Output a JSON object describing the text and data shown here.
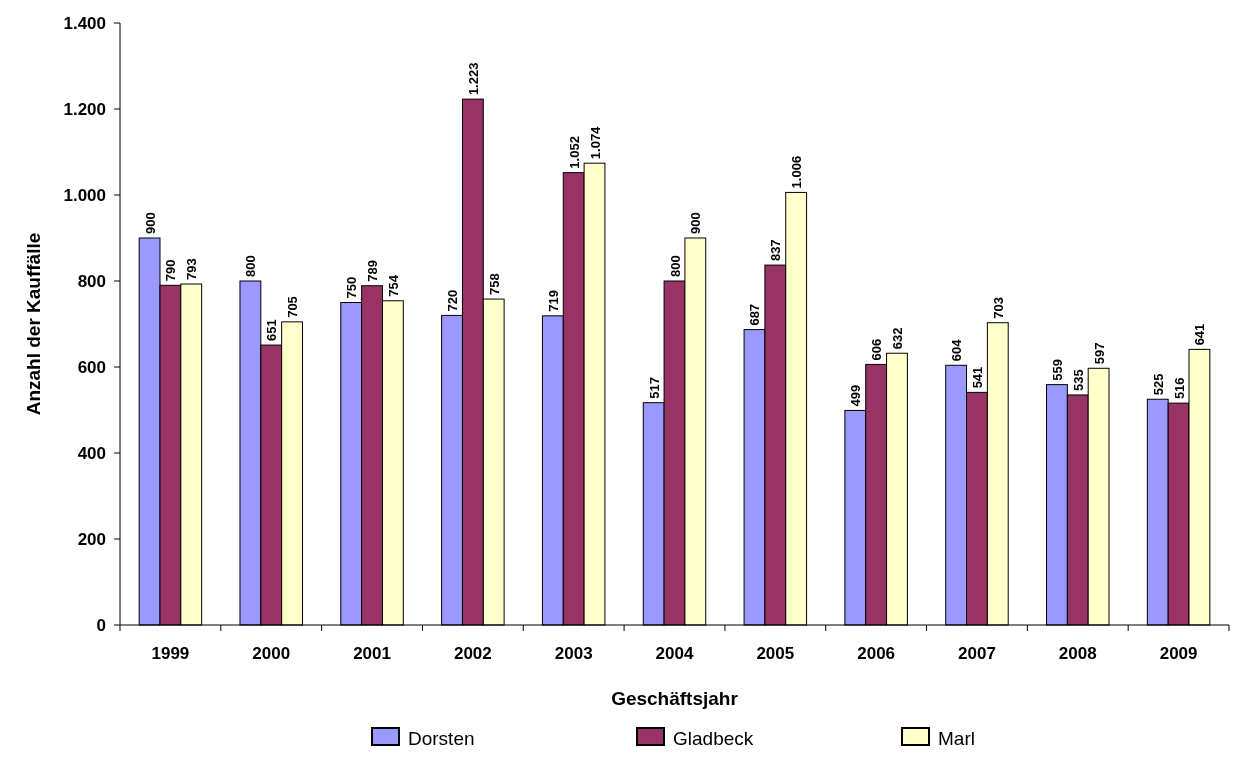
{
  "chart_data": {
    "type": "bar",
    "xlabel": "Geschäftsjahr",
    "ylabel": "Anzahl der Kauffälle",
    "categories": [
      "1999",
      "2000",
      "2001",
      "2002",
      "2003",
      "2004",
      "2005",
      "2006",
      "2007",
      "2008",
      "2009"
    ],
    "series": [
      {
        "name": "Dorsten",
        "color": "#9999ff",
        "values": [
          900,
          800,
          750,
          720,
          719,
          517,
          687,
          499,
          604,
          559,
          525
        ],
        "value_labels": [
          "900",
          "800",
          "750",
          "720",
          "719",
          "517",
          "687",
          "499",
          "604",
          "559",
          "525"
        ]
      },
      {
        "name": "Gladbeck",
        "color": "#993366",
        "values": [
          790,
          651,
          789,
          1223,
          1052,
          800,
          837,
          606,
          541,
          535,
          516
        ],
        "value_labels": [
          "790",
          "651",
          "789",
          "1.223",
          "1.052",
          "800",
          "837",
          "606",
          "541",
          "535",
          "516"
        ]
      },
      {
        "name": "Marl",
        "color": "#ffffcc",
        "values": [
          793,
          705,
          754,
          758,
          1074,
          900,
          1006,
          632,
          703,
          597,
          641
        ],
        "value_labels": [
          "793",
          "705",
          "754",
          "758",
          "1.074",
          "900",
          "1.006",
          "632",
          "703",
          "597",
          "641"
        ]
      }
    ],
    "ylim": [
      0,
      1400
    ],
    "yticks": [
      0,
      200,
      400,
      600,
      800,
      {
        "value": 1000,
        "label": "1.000"
      },
      {
        "value": 1200,
        "label": "1.200"
      },
      {
        "value": 1400,
        "label": "1.400"
      }
    ],
    "legend": "bottom",
    "grid": false
  }
}
